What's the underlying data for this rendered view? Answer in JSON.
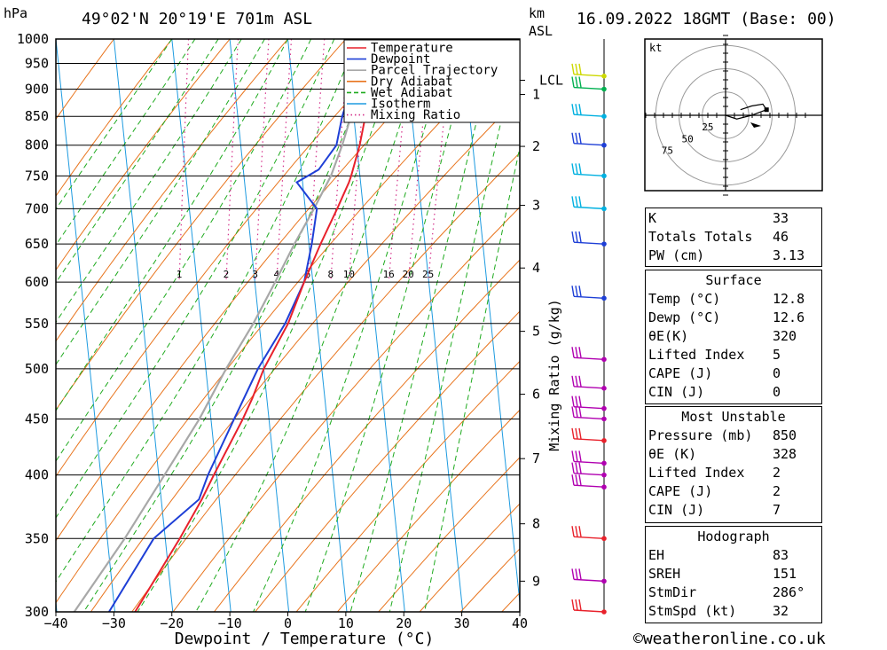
{
  "header": {
    "pressure_unit": "hPa",
    "location": "49°02'N 20°19'E 701m ASL",
    "height_unit_km": "km",
    "height_unit_asl": "ASL",
    "datetime": "16.09.2022 18GMT (Base: 00)"
  },
  "chart_data": {
    "type": "skew-t",
    "xlabel": "Dewpoint / Temperature (°C)",
    "ylabel": "hPa",
    "right_axis_label": "Mixing Ratio (g/kg)",
    "xlim": [
      -40,
      40
    ],
    "ylim": [
      1000,
      300
    ],
    "temperature_ticks": [
      -40,
      -30,
      -20,
      -10,
      0,
      10,
      20,
      30,
      40
    ],
    "temperature_tick_labels": [
      "−40",
      "−30",
      "−20",
      "−10",
      "0",
      "10",
      "20",
      "30",
      "40"
    ],
    "pressure_levels": [
      300,
      350,
      400,
      450,
      500,
      550,
      600,
      650,
      700,
      750,
      800,
      850,
      900,
      950,
      1000
    ],
    "height_km_ticks": [
      {
        "km": 9,
        "p": 320
      },
      {
        "km": 8,
        "p": 361
      },
      {
        "km": 7,
        "p": 414
      },
      {
        "km": 6,
        "p": 474
      },
      {
        "km": 5,
        "p": 541
      },
      {
        "km": 4,
        "p": 618
      },
      {
        "km": 3,
        "p": 705
      },
      {
        "km": 2,
        "p": 798
      },
      {
        "km": 1,
        "p": 890
      }
    ],
    "lcl": {
      "label": "LCL",
      "p": 917
    },
    "mixing_ratio_labels": [
      "1",
      "2",
      "3",
      "4",
      "6",
      "8",
      "10",
      "16",
      "20",
      "25"
    ],
    "mixing_ratio_values": [
      1,
      2,
      3,
      4,
      6,
      8,
      10,
      16,
      20,
      25
    ],
    "legend": [
      {
        "name": "Temperature",
        "color": "#e8212b",
        "style": "solid"
      },
      {
        "name": "Dewpoint",
        "color": "#1e3fd6",
        "style": "solid"
      },
      {
        "name": "Parcel Trajectory",
        "color": "#a8a8a8",
        "style": "solid"
      },
      {
        "name": "Dry Adiabat",
        "color": "#e8741d",
        "style": "solid"
      },
      {
        "name": "Wet Adiabat",
        "color": "#1eaa1e",
        "style": "dashed"
      },
      {
        "name": "Isotherm",
        "color": "#1e9be0",
        "style": "solid"
      },
      {
        "name": "Mixing Ratio",
        "color": "#d4308a",
        "style": "dotted"
      }
    ],
    "series": [
      {
        "name": "Temperature",
        "points": [
          {
            "p": 300,
            "t": -36.5
          },
          {
            "p": 350,
            "t": -27.5
          },
          {
            "p": 380,
            "t": -23
          },
          {
            "p": 400,
            "t": -20.5
          },
          {
            "p": 450,
            "t": -14.5
          },
          {
            "p": 470,
            "t": -12.5
          },
          {
            "p": 500,
            "t": -10
          },
          {
            "p": 550,
            "t": -5
          },
          {
            "p": 600,
            "t": -1.5
          },
          {
            "p": 650,
            "t": 2
          },
          {
            "p": 700,
            "t": 5.5
          },
          {
            "p": 740,
            "t": 8
          },
          {
            "p": 750,
            "t": 8.5
          },
          {
            "p": 800,
            "t": 10.5
          },
          {
            "p": 850,
            "t": 12
          },
          {
            "p": 880,
            "t": 14
          },
          {
            "p": 900,
            "t": 14
          },
          {
            "p": 920,
            "t": 13
          },
          {
            "p": 925,
            "t": 12.8
          }
        ]
      },
      {
        "name": "Dewpoint",
        "points": [
          {
            "p": 300,
            "t": -41
          },
          {
            "p": 350,
            "t": -32
          },
          {
            "p": 380,
            "t": -23.5
          },
          {
            "p": 400,
            "t": -21.5
          },
          {
            "p": 450,
            "t": -16
          },
          {
            "p": 500,
            "t": -11
          },
          {
            "p": 550,
            "t": -5.5
          },
          {
            "p": 600,
            "t": -1.5
          },
          {
            "p": 650,
            "t": 0.5
          },
          {
            "p": 700,
            "t": 2
          },
          {
            "p": 740,
            "t": -1
          },
          {
            "p": 760,
            "t": 3
          },
          {
            "p": 800,
            "t": 6.5
          },
          {
            "p": 850,
            "t": 8
          },
          {
            "p": 900,
            "t": 10
          },
          {
            "p": 925,
            "t": 12.6
          }
        ]
      },
      {
        "name": "Parcel Trajectory",
        "points": [
          {
            "p": 300,
            "t": -47
          },
          {
            "p": 350,
            "t": -37
          },
          {
            "p": 400,
            "t": -29
          },
          {
            "p": 450,
            "t": -22
          },
          {
            "p": 500,
            "t": -16.5
          },
          {
            "p": 550,
            "t": -11
          },
          {
            "p": 600,
            "t": -6.5
          },
          {
            "p": 650,
            "t": -2.5
          },
          {
            "p": 700,
            "t": 1.5
          },
          {
            "p": 750,
            "t": 5
          },
          {
            "p": 800,
            "t": 7.5
          },
          {
            "p": 850,
            "t": 9.5
          },
          {
            "p": 900,
            "t": 11.5
          },
          {
            "p": 925,
            "t": 12.6
          }
        ]
      }
    ],
    "wind_barbs": [
      {
        "p": 300,
        "color": "#e8212b"
      },
      {
        "p": 320,
        "color": "#b000b0"
      },
      {
        "p": 350,
        "color": "#e8212b"
      },
      {
        "p": 390,
        "color": "#b000b0"
      },
      {
        "p": 400,
        "color": "#b000b0"
      },
      {
        "p": 410,
        "color": "#b000b0"
      },
      {
        "p": 430,
        "color": "#e8212b"
      },
      {
        "p": 450,
        "color": "#b000b0"
      },
      {
        "p": 460,
        "color": "#b000b0"
      },
      {
        "p": 480,
        "color": "#b000b0"
      },
      {
        "p": 510,
        "color": "#b000b0"
      },
      {
        "p": 580,
        "color": "#1e3fd6"
      },
      {
        "p": 650,
        "color": "#1e3fd6"
      },
      {
        "p": 700,
        "color": "#00b0e0"
      },
      {
        "p": 750,
        "color": "#00b0e0"
      },
      {
        "p": 800,
        "color": "#1e3fd6"
      },
      {
        "p": 850,
        "color": "#00b0e0"
      },
      {
        "p": 900,
        "color": "#00b050"
      },
      {
        "p": 925,
        "color": "#ccd800"
      }
    ]
  },
  "hodograph": {
    "unit": "kt",
    "ring_labels": [
      "25",
      "50",
      "75"
    ],
    "points": [
      [
        0,
        0
      ],
      [
        6,
        2
      ],
      [
        14,
        0
      ],
      [
        22,
        -3
      ],
      [
        20,
        -6
      ],
      [
        14,
        -5
      ],
      [
        8,
        -3
      ]
    ]
  },
  "indices": {
    "basic": [
      {
        "label": "K",
        "value": "33"
      },
      {
        "label": "Totals Totals",
        "value": "46"
      },
      {
        "label": "PW (cm)",
        "value": "3.13"
      }
    ],
    "surface": {
      "title": "Surface",
      "rows": [
        {
          "label": "Temp (°C)",
          "value": "12.8"
        },
        {
          "label": "Dewp (°C)",
          "value": "12.6"
        },
        {
          "label": "θE(K)",
          "value": "320"
        },
        {
          "label": "Lifted Index",
          "value": "5"
        },
        {
          "label": "CAPE (J)",
          "value": "0"
        },
        {
          "label": "CIN (J)",
          "value": "0"
        }
      ]
    },
    "most_unstable": {
      "title": "Most Unstable",
      "rows": [
        {
          "label": "Pressure (mb)",
          "value": "850"
        },
        {
          "label": "θE (K)",
          "value": "328"
        },
        {
          "label": "Lifted Index",
          "value": "2"
        },
        {
          "label": "CAPE (J)",
          "value": "2"
        },
        {
          "label": "CIN (J)",
          "value": "7"
        }
      ]
    },
    "hodograph": {
      "title": "Hodograph",
      "rows": [
        {
          "label": "EH",
          "value": "83"
        },
        {
          "label": "SREH",
          "value": "151"
        },
        {
          "label": "StmDir",
          "value": "286°"
        },
        {
          "label": "StmSpd (kt)",
          "value": "32"
        }
      ]
    }
  },
  "footer": {
    "copyright": "©weatheronline.co.uk"
  },
  "colors": {
    "temperature": "#e8212b",
    "dewpoint": "#1e3fd6",
    "parcel": "#a8a8a8",
    "dry_adiabat": "#e8741d",
    "wet_adiabat": "#1eaa1e",
    "isotherm": "#1e9be0",
    "mixing_ratio": "#d4308a"
  }
}
